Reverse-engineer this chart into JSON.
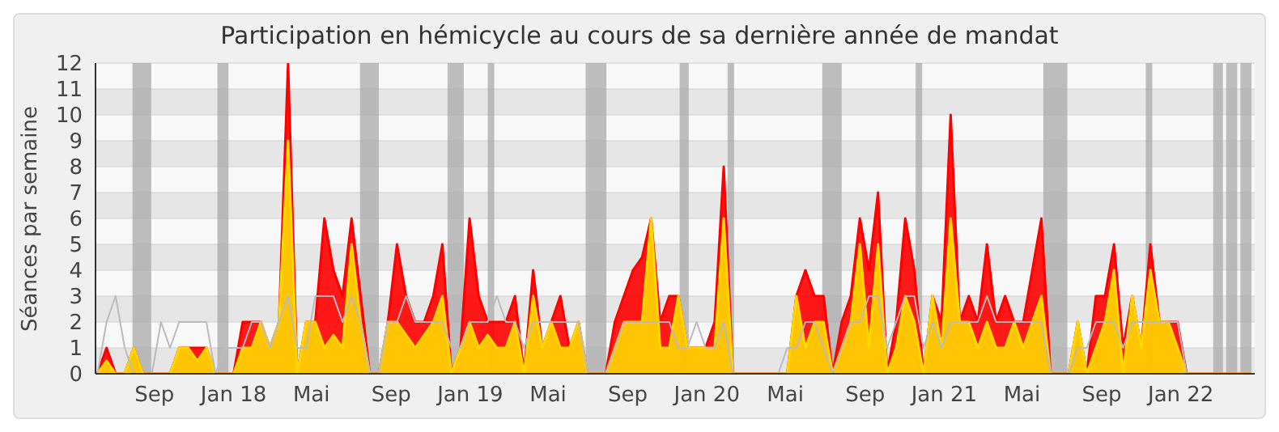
{
  "chart_data": {
    "type": "area",
    "title": "Participation en hémicycle au cours de sa dernière année de mandat",
    "ylabel": "Séances par semaine",
    "x": [
      "2017-06-05",
      "2017-06-19",
      "2017-07-03",
      "2017-07-17",
      "2017-07-31",
      "2017-08-14",
      "2017-08-28",
      "2017-09-11",
      "2017-09-25",
      "2017-10-09",
      "2017-10-23",
      "2017-11-06",
      "2017-11-20",
      "2017-12-04",
      "2017-12-18",
      "2018-01-01",
      "2018-01-15",
      "2018-01-29",
      "2018-02-12",
      "2018-02-26",
      "2018-03-12",
      "2018-03-26",
      "2018-04-09",
      "2018-04-23",
      "2018-05-07",
      "2018-05-21",
      "2018-06-04",
      "2018-06-18",
      "2018-07-02",
      "2018-07-16",
      "2018-07-30",
      "2018-08-13",
      "2018-08-27",
      "2018-09-10",
      "2018-09-24",
      "2018-10-08",
      "2018-10-22",
      "2018-11-05",
      "2018-11-19",
      "2018-12-03",
      "2018-12-17",
      "2018-12-31",
      "2019-01-14",
      "2019-01-28",
      "2019-02-11",
      "2019-02-25",
      "2019-03-11",
      "2019-03-25",
      "2019-04-08",
      "2019-04-22",
      "2019-05-06",
      "2019-05-20",
      "2019-06-03",
      "2019-06-17",
      "2019-07-01",
      "2019-07-15",
      "2019-07-29",
      "2019-08-12",
      "2019-08-26",
      "2019-09-09",
      "2019-09-23",
      "2019-10-07",
      "2019-10-21",
      "2019-11-04",
      "2019-11-18",
      "2019-12-02",
      "2019-12-16",
      "2019-12-30",
      "2020-01-13",
      "2020-01-27",
      "2020-02-10",
      "2020-02-24",
      "2020-03-09",
      "2020-03-23",
      "2020-04-06",
      "2020-04-20",
      "2020-05-04",
      "2020-05-18",
      "2020-06-01",
      "2020-06-15",
      "2020-06-29",
      "2020-07-13",
      "2020-07-27",
      "2020-08-10",
      "2020-08-24",
      "2020-09-07",
      "2020-09-21",
      "2020-10-05",
      "2020-10-19",
      "2020-11-02",
      "2020-11-16",
      "2020-11-30",
      "2020-12-14",
      "2020-12-28",
      "2021-01-11",
      "2021-01-25",
      "2021-02-08",
      "2021-02-22",
      "2021-03-08",
      "2021-03-22",
      "2021-04-05",
      "2021-04-19",
      "2021-05-03",
      "2021-05-17",
      "2021-05-31",
      "2021-06-14",
      "2021-06-28",
      "2021-07-12",
      "2021-07-26",
      "2021-08-09",
      "2021-08-23",
      "2021-09-06",
      "2021-09-20",
      "2021-10-04",
      "2021-10-18",
      "2021-11-01",
      "2021-11-15",
      "2021-11-29",
      "2021-12-13",
      "2021-12-27",
      "2022-01-10",
      "2022-01-24",
      "2022-02-07",
      "2022-02-21",
      "2022-03-07",
      "2022-03-21",
      "2022-04-04",
      "2022-04-18"
    ],
    "series": [
      {
        "type": "line",
        "color": "#bbbbbb",
        "values": [
          0,
          2,
          3,
          1,
          0,
          0,
          0,
          2,
          1,
          2,
          2,
          2,
          2,
          0,
          1,
          1,
          1,
          2,
          2,
          1,
          2,
          3,
          1,
          1,
          3,
          3,
          3,
          2,
          3,
          2,
          0,
          0,
          2,
          2,
          3,
          2,
          2,
          2,
          2,
          1,
          1,
          2,
          2,
          2,
          3,
          2,
          2,
          1,
          2,
          2,
          2,
          2,
          2,
          2,
          0,
          0,
          0,
          1,
          2,
          2,
          2,
          2,
          2,
          2,
          1,
          1,
          2,
          1,
          1,
          2,
          0,
          0,
          0,
          0,
          0,
          0,
          1,
          1,
          2,
          2,
          1,
          0,
          1,
          2,
          2,
          3,
          3,
          1,
          2,
          3,
          3,
          1,
          2,
          1,
          2,
          2,
          2,
          2,
          3,
          2,
          2,
          2,
          2,
          2,
          2,
          0,
          0,
          0,
          1,
          1,
          2,
          2,
          2,
          1,
          2,
          2,
          2,
          2,
          2,
          2,
          0,
          0,
          0,
          0,
          0,
          0,
          0,
          0
        ]
      },
      {
        "type": "area",
        "color": "#ff0000",
        "values": [
          0,
          1,
          0,
          0,
          1,
          0,
          0,
          0,
          0,
          1,
          1,
          1,
          1,
          0,
          0,
          0,
          2,
          2,
          2,
          1,
          2,
          12,
          0,
          2,
          2,
          6,
          4,
          3,
          6,
          3,
          0,
          0,
          2,
          5,
          3,
          2,
          2,
          3,
          5,
          0,
          1,
          6,
          3,
          2,
          2,
          2,
          3,
          0,
          4,
          1,
          2,
          3,
          1,
          2,
          0,
          0,
          0,
          2,
          3,
          4,
          4.5,
          6,
          2,
          3,
          3,
          1,
          1,
          1,
          2,
          8,
          0,
          0,
          0,
          0,
          0,
          0,
          0,
          3,
          4,
          3,
          3,
          0,
          2,
          3,
          6,
          4,
          7,
          0,
          2,
          6,
          4,
          0,
          3,
          2,
          10,
          2,
          3,
          2,
          5,
          2,
          3,
          2,
          2,
          4,
          6,
          0,
          0,
          0,
          2,
          0,
          3,
          3,
          5,
          1,
          3,
          1,
          5,
          2,
          2,
          2,
          0,
          0,
          0,
          0,
          0,
          0,
          0,
          0
        ]
      },
      {
        "type": "area",
        "color": "#ffd700",
        "values": [
          0,
          0.5,
          0,
          0,
          1,
          0,
          0,
          0,
          0,
          1,
          1,
          0.5,
          1,
          0,
          0,
          0,
          1,
          1,
          2,
          1,
          2,
          9,
          0,
          2,
          2,
          1,
          1.5,
          1,
          5,
          2,
          0,
          0,
          2,
          2,
          1.5,
          1,
          1.5,
          2,
          3,
          0,
          1,
          2,
          1,
          1.5,
          1,
          1,
          2,
          0,
          3,
          1,
          2,
          1,
          1,
          2,
          0,
          0,
          0,
          1,
          2,
          2,
          2,
          6,
          1,
          1,
          3,
          1,
          1,
          1,
          1,
          6,
          0,
          0,
          0,
          0,
          0,
          0,
          0,
          3,
          1,
          2,
          2,
          0,
          1,
          2,
          5,
          1,
          5,
          0,
          1,
          3,
          2,
          0,
          3,
          1,
          6,
          2,
          2,
          1,
          2,
          1,
          1,
          2,
          1,
          2,
          3,
          0,
          0,
          0,
          2,
          0,
          1,
          2,
          4,
          0,
          3,
          1,
          4,
          2,
          2,
          1,
          0,
          0,
          0,
          0,
          0,
          0,
          0,
          0
        ]
      }
    ],
    "xlim": [
      "2017-06-02",
      "2022-04-25"
    ],
    "xticks": [
      {
        "value": "2017-09-01",
        "label": "Sep"
      },
      {
        "value": "2018-01-01",
        "label": "Jan 18"
      },
      {
        "value": "2018-05-01",
        "label": "Mai"
      },
      {
        "value": "2018-09-01",
        "label": "Sep"
      },
      {
        "value": "2019-01-01",
        "label": "Jan 19"
      },
      {
        "value": "2019-05-01",
        "label": "Mai"
      },
      {
        "value": "2019-09-01",
        "label": "Sep"
      },
      {
        "value": "2020-01-01",
        "label": "Jan 20"
      },
      {
        "value": "2020-05-01",
        "label": "Mai"
      },
      {
        "value": "2020-09-01",
        "label": "Sep"
      },
      {
        "value": "2021-01-01",
        "label": "Jan 21"
      },
      {
        "value": "2021-05-01",
        "label": "Mai"
      },
      {
        "value": "2021-09-01",
        "label": "Sep"
      },
      {
        "value": "2022-01-01",
        "label": "Jan 22"
      }
    ],
    "ylim": [
      0,
      12
    ],
    "yticks": [
      0,
      1,
      2,
      3,
      4,
      5,
      6,
      7,
      8,
      9,
      10,
      11,
      12
    ],
    "grid": "y",
    "marker": "none",
    "bands": [
      {
        "axis": "x",
        "from": "2017-07-29",
        "to": "2017-08-27",
        "color": "#aaaaaa"
      },
      {
        "axis": "x",
        "from": "2017-12-07",
        "to": "2017-12-24",
        "color": "#aaaaaa"
      },
      {
        "axis": "x",
        "from": "2018-07-15",
        "to": "2018-08-13",
        "color": "#aaaaaa"
      },
      {
        "axis": "x",
        "from": "2018-11-27",
        "to": "2018-12-22",
        "color": "#aaaaaa"
      },
      {
        "axis": "x",
        "from": "2019-01-28",
        "to": "2019-02-07",
        "color": "#aaaaaa"
      },
      {
        "axis": "x",
        "from": "2019-06-28",
        "to": "2019-07-30",
        "color": "#aaaaaa"
      },
      {
        "axis": "x",
        "from": "2019-11-20",
        "to": "2019-12-04",
        "color": "#aaaaaa"
      },
      {
        "axis": "x",
        "from": "2020-02-02",
        "to": "2020-02-12",
        "color": "#aaaaaa"
      },
      {
        "axis": "x",
        "from": "2020-06-27",
        "to": "2020-07-27",
        "color": "#aaaaaa"
      },
      {
        "axis": "x",
        "from": "2020-11-18",
        "to": "2020-11-28",
        "color": "#aaaaaa"
      },
      {
        "axis": "x",
        "from": "2021-06-03",
        "to": "2021-07-10",
        "color": "#aaaaaa"
      },
      {
        "axis": "x",
        "from": "2021-11-08",
        "to": "2021-11-18",
        "color": "#aaaaaa"
      },
      {
        "axis": "x",
        "from": "2022-02-20",
        "to": "2022-03-07",
        "color": "#aaaaaa"
      },
      {
        "axis": "x",
        "from": "2022-03-12",
        "to": "2022-03-29",
        "color": "#aaaaaa"
      },
      {
        "axis": "x",
        "from": "2022-04-03",
        "to": "2022-04-20",
        "color": "#aaaaaa"
      }
    ]
  }
}
